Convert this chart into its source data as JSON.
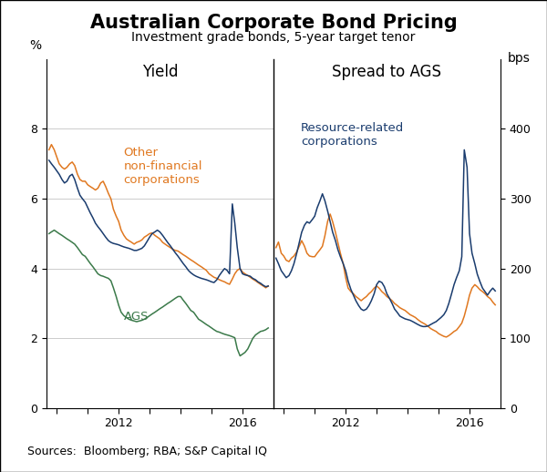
{
  "title": "Australian Corporate Bond Pricing",
  "subtitle": "Investment grade bonds, 5-year target tenor",
  "source": "Sources:  Bloomberg; RBA; S&P Capital IQ",
  "left_panel_title": "Yield",
  "right_panel_title": "Spread to AGS",
  "left_ylabel": "%",
  "right_ylabel": "bps",
  "left_ylim": [
    0,
    10
  ],
  "right_ylim": [
    0,
    500
  ],
  "left_yticks": [
    0,
    2,
    4,
    6,
    8
  ],
  "right_yticks": [
    0,
    100,
    200,
    300,
    400
  ],
  "xlim": [
    2009.67,
    2017.0
  ],
  "xtick_major": [
    2010,
    2011,
    2012,
    2013,
    2014,
    2015,
    2016,
    2017
  ],
  "xtick_labels_positions": [
    2012,
    2016
  ],
  "colors": {
    "orange": "#E07820",
    "blue": "#1A3C6E",
    "green": "#3B7A4A"
  },
  "background_color": "#ffffff",
  "grid_color": "#cccccc",
  "title_fontsize": 15,
  "subtitle_fontsize": 10,
  "panel_label_fontsize": 12,
  "annotation_fontsize": 9.5,
  "tick_fontsize": 9,
  "source_fontsize": 9,
  "yield_other_nonfin_x": [
    2009.75,
    2009.83,
    2009.92,
    2010.0,
    2010.08,
    2010.17,
    2010.25,
    2010.33,
    2010.42,
    2010.5,
    2010.58,
    2010.67,
    2010.75,
    2010.83,
    2010.92,
    2011.0,
    2011.08,
    2011.17,
    2011.25,
    2011.33,
    2011.42,
    2011.5,
    2011.58,
    2011.67,
    2011.75,
    2011.83,
    2011.92,
    2012.0,
    2012.08,
    2012.17,
    2012.25,
    2012.33,
    2012.42,
    2012.5,
    2012.58,
    2012.67,
    2012.75,
    2012.83,
    2012.92,
    2013.0,
    2013.08,
    2013.17,
    2013.25,
    2013.33,
    2013.42,
    2013.5,
    2013.58,
    2013.67,
    2013.75,
    2013.83,
    2013.92,
    2014.0,
    2014.08,
    2014.17,
    2014.25,
    2014.33,
    2014.42,
    2014.5,
    2014.58,
    2014.67,
    2014.75,
    2014.83,
    2014.92,
    2015.0,
    2015.08,
    2015.17,
    2015.25,
    2015.33,
    2015.42,
    2015.5,
    2015.58,
    2015.67,
    2015.75,
    2015.83,
    2015.92,
    2016.0,
    2016.08,
    2016.17,
    2016.25,
    2016.33,
    2016.42,
    2016.5,
    2016.58,
    2016.67,
    2016.75,
    2016.83
  ],
  "yield_other_nonfin_y": [
    7.4,
    7.55,
    7.4,
    7.2,
    7.0,
    6.9,
    6.85,
    6.9,
    7.0,
    7.05,
    6.95,
    6.7,
    6.55,
    6.5,
    6.5,
    6.4,
    6.35,
    6.3,
    6.25,
    6.3,
    6.45,
    6.5,
    6.35,
    6.15,
    6.0,
    5.7,
    5.5,
    5.35,
    5.1,
    4.95,
    4.85,
    4.8,
    4.75,
    4.7,
    4.75,
    4.78,
    4.82,
    4.9,
    4.95,
    5.0,
    5.02,
    4.95,
    4.9,
    4.85,
    4.75,
    4.7,
    4.65,
    4.6,
    4.55,
    4.52,
    4.5,
    4.45,
    4.4,
    4.35,
    4.3,
    4.25,
    4.2,
    4.15,
    4.1,
    4.05,
    4.0,
    3.95,
    3.85,
    3.8,
    3.75,
    3.72,
    3.68,
    3.65,
    3.62,
    3.58,
    3.55,
    3.7,
    3.85,
    3.95,
    4.0,
    3.9,
    3.85,
    3.8,
    3.75,
    3.7,
    3.65,
    3.6,
    3.55,
    3.5,
    3.45,
    3.5
  ],
  "yield_resource_x": [
    2009.75,
    2009.83,
    2009.92,
    2010.0,
    2010.08,
    2010.17,
    2010.25,
    2010.33,
    2010.42,
    2010.5,
    2010.58,
    2010.67,
    2010.75,
    2010.83,
    2010.92,
    2011.0,
    2011.08,
    2011.17,
    2011.25,
    2011.33,
    2011.42,
    2011.5,
    2011.58,
    2011.67,
    2011.75,
    2011.83,
    2011.92,
    2012.0,
    2012.08,
    2012.17,
    2012.25,
    2012.33,
    2012.42,
    2012.5,
    2012.58,
    2012.67,
    2012.75,
    2012.83,
    2012.92,
    2013.0,
    2013.08,
    2013.17,
    2013.25,
    2013.33,
    2013.42,
    2013.5,
    2013.58,
    2013.67,
    2013.75,
    2013.83,
    2013.92,
    2014.0,
    2014.08,
    2014.17,
    2014.25,
    2014.33,
    2014.42,
    2014.5,
    2014.58,
    2014.67,
    2014.75,
    2014.83,
    2014.92,
    2015.0,
    2015.08,
    2015.17,
    2015.25,
    2015.33,
    2015.42,
    2015.5,
    2015.58,
    2015.67,
    2015.75,
    2015.83,
    2015.92,
    2016.0,
    2016.08,
    2016.17,
    2016.25,
    2016.33,
    2016.42,
    2016.5,
    2016.58,
    2016.67,
    2016.75,
    2016.83
  ],
  "yield_resource_y": [
    7.1,
    7.0,
    6.9,
    6.8,
    6.7,
    6.55,
    6.45,
    6.5,
    6.65,
    6.7,
    6.55,
    6.3,
    6.1,
    6.0,
    5.9,
    5.75,
    5.6,
    5.45,
    5.3,
    5.2,
    5.1,
    5.0,
    4.9,
    4.8,
    4.75,
    4.72,
    4.7,
    4.68,
    4.65,
    4.62,
    4.6,
    4.58,
    4.55,
    4.52,
    4.52,
    4.55,
    4.58,
    4.65,
    4.78,
    4.9,
    5.0,
    5.05,
    5.1,
    5.05,
    4.95,
    4.85,
    4.75,
    4.65,
    4.55,
    4.45,
    4.35,
    4.25,
    4.15,
    4.05,
    3.95,
    3.88,
    3.82,
    3.78,
    3.75,
    3.72,
    3.7,
    3.68,
    3.65,
    3.62,
    3.6,
    3.68,
    3.8,
    3.9,
    4.0,
    3.95,
    3.85,
    5.85,
    5.3,
    4.6,
    4.0,
    3.85,
    3.82,
    3.8,
    3.78,
    3.72,
    3.68,
    3.62,
    3.58,
    3.52,
    3.48,
    3.5
  ],
  "yield_ags_x": [
    2009.75,
    2009.83,
    2009.92,
    2010.0,
    2010.08,
    2010.17,
    2010.25,
    2010.33,
    2010.42,
    2010.5,
    2010.58,
    2010.67,
    2010.75,
    2010.83,
    2010.92,
    2011.0,
    2011.08,
    2011.17,
    2011.25,
    2011.33,
    2011.42,
    2011.5,
    2011.58,
    2011.67,
    2011.75,
    2011.83,
    2011.92,
    2012.0,
    2012.08,
    2012.17,
    2012.25,
    2012.33,
    2012.42,
    2012.5,
    2012.58,
    2012.67,
    2012.75,
    2012.83,
    2012.92,
    2013.0,
    2013.08,
    2013.17,
    2013.25,
    2013.33,
    2013.42,
    2013.5,
    2013.58,
    2013.67,
    2013.75,
    2013.83,
    2013.92,
    2014.0,
    2014.08,
    2014.17,
    2014.25,
    2014.33,
    2014.42,
    2014.5,
    2014.58,
    2014.67,
    2014.75,
    2014.83,
    2014.92,
    2015.0,
    2015.08,
    2015.17,
    2015.25,
    2015.33,
    2015.42,
    2015.5,
    2015.58,
    2015.67,
    2015.75,
    2015.83,
    2015.92,
    2016.0,
    2016.08,
    2016.17,
    2016.25,
    2016.33,
    2016.42,
    2016.5,
    2016.58,
    2016.67,
    2016.75,
    2016.83
  ],
  "yield_ags_y": [
    5.0,
    5.05,
    5.1,
    5.05,
    5.0,
    4.95,
    4.9,
    4.85,
    4.8,
    4.75,
    4.7,
    4.6,
    4.5,
    4.4,
    4.35,
    4.25,
    4.15,
    4.05,
    3.95,
    3.85,
    3.8,
    3.78,
    3.75,
    3.72,
    3.65,
    3.45,
    3.2,
    2.95,
    2.75,
    2.65,
    2.6,
    2.55,
    2.52,
    2.5,
    2.48,
    2.5,
    2.52,
    2.55,
    2.6,
    2.65,
    2.7,
    2.75,
    2.8,
    2.85,
    2.9,
    2.95,
    3.0,
    3.05,
    3.1,
    3.15,
    3.2,
    3.2,
    3.1,
    3.0,
    2.9,
    2.8,
    2.75,
    2.65,
    2.55,
    2.5,
    2.45,
    2.4,
    2.35,
    2.3,
    2.25,
    2.2,
    2.18,
    2.15,
    2.12,
    2.1,
    2.08,
    2.05,
    2.02,
    1.7,
    1.5,
    1.55,
    1.6,
    1.7,
    1.85,
    2.0,
    2.1,
    2.15,
    2.2,
    2.22,
    2.25,
    2.3
  ],
  "spread_other_x": [
    2009.75,
    2009.83,
    2009.92,
    2010.0,
    2010.08,
    2010.17,
    2010.25,
    2010.33,
    2010.42,
    2010.5,
    2010.58,
    2010.67,
    2010.75,
    2010.83,
    2010.92,
    2011.0,
    2011.08,
    2011.17,
    2011.25,
    2011.33,
    2011.42,
    2011.5,
    2011.58,
    2011.67,
    2011.75,
    2011.83,
    2011.92,
    2012.0,
    2012.08,
    2012.17,
    2012.25,
    2012.33,
    2012.42,
    2012.5,
    2012.58,
    2012.67,
    2012.75,
    2012.83,
    2012.92,
    2013.0,
    2013.08,
    2013.17,
    2013.25,
    2013.33,
    2013.42,
    2013.5,
    2013.58,
    2013.67,
    2013.75,
    2013.83,
    2013.92,
    2014.0,
    2014.08,
    2014.17,
    2014.25,
    2014.33,
    2014.42,
    2014.5,
    2014.58,
    2014.67,
    2014.75,
    2014.83,
    2014.92,
    2015.0,
    2015.08,
    2015.17,
    2015.25,
    2015.33,
    2015.42,
    2015.5,
    2015.58,
    2015.67,
    2015.75,
    2015.83,
    2015.92,
    2016.0,
    2016.08,
    2016.17,
    2016.25,
    2016.33,
    2016.42,
    2016.5,
    2016.58,
    2016.67,
    2016.75,
    2016.83
  ],
  "spread_other_y": [
    230,
    238,
    222,
    218,
    212,
    210,
    215,
    218,
    224,
    232,
    240,
    232,
    222,
    218,
    217,
    217,
    222,
    227,
    232,
    247,
    268,
    278,
    267,
    252,
    237,
    222,
    207,
    187,
    172,
    167,
    164,
    160,
    157,
    154,
    157,
    160,
    164,
    167,
    172,
    175,
    172,
    167,
    164,
    160,
    157,
    154,
    150,
    147,
    144,
    142,
    140,
    137,
    134,
    132,
    130,
    127,
    124,
    122,
    120,
    117,
    114,
    112,
    110,
    107,
    105,
    103,
    102,
    104,
    107,
    110,
    112,
    117,
    122,
    132,
    147,
    162,
    172,
    177,
    174,
    170,
    167,
    164,
    160,
    157,
    152,
    148
  ],
  "spread_resource_x": [
    2009.75,
    2009.83,
    2009.92,
    2010.0,
    2010.08,
    2010.17,
    2010.25,
    2010.33,
    2010.42,
    2010.5,
    2010.58,
    2010.67,
    2010.75,
    2010.83,
    2010.92,
    2011.0,
    2011.08,
    2011.17,
    2011.25,
    2011.33,
    2011.42,
    2011.5,
    2011.58,
    2011.67,
    2011.75,
    2011.83,
    2011.92,
    2012.0,
    2012.08,
    2012.17,
    2012.25,
    2012.33,
    2012.42,
    2012.5,
    2012.58,
    2012.67,
    2012.75,
    2012.83,
    2012.92,
    2013.0,
    2013.08,
    2013.17,
    2013.25,
    2013.33,
    2013.42,
    2013.5,
    2013.58,
    2013.67,
    2013.75,
    2013.83,
    2013.92,
    2014.0,
    2014.08,
    2014.17,
    2014.25,
    2014.33,
    2014.42,
    2014.5,
    2014.58,
    2014.67,
    2014.75,
    2014.83,
    2014.92,
    2015.0,
    2015.08,
    2015.17,
    2015.25,
    2015.33,
    2015.42,
    2015.5,
    2015.58,
    2015.67,
    2015.75,
    2015.83,
    2015.92,
    2016.0,
    2016.08,
    2016.17,
    2016.25,
    2016.33,
    2016.42,
    2016.5,
    2016.58,
    2016.67,
    2016.75,
    2016.83
  ],
  "spread_resource_y": [
    215,
    207,
    197,
    192,
    187,
    190,
    197,
    207,
    222,
    237,
    252,
    262,
    267,
    265,
    270,
    275,
    287,
    297,
    307,
    297,
    282,
    267,
    252,
    240,
    227,
    217,
    207,
    197,
    182,
    170,
    162,
    154,
    147,
    142,
    140,
    142,
    147,
    154,
    164,
    177,
    182,
    180,
    174,
    164,
    157,
    150,
    142,
    137,
    132,
    130,
    128,
    127,
    126,
    124,
    122,
    120,
    118,
    117,
    117,
    118,
    120,
    122,
    124,
    127,
    130,
    134,
    140,
    150,
    164,
    177,
    187,
    197,
    217,
    370,
    345,
    250,
    222,
    207,
    192,
    182,
    172,
    167,
    162,
    168,
    172,
    168
  ]
}
